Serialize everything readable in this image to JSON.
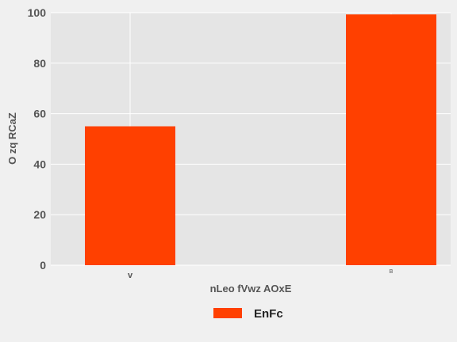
{
  "chart_data": {
    "type": "bar",
    "categories": [
      "v",
      "B"
    ],
    "series": [
      {
        "name": "EnFc",
        "values": [
          55,
          99.3
        ]
      }
    ],
    "xlabel": "nLeo fVwz AOxE",
    "ylabel": "O zq RCaZ",
    "ylim": [
      0,
      100
    ],
    "yticks": [
      0,
      20,
      40,
      60,
      80,
      100
    ],
    "grid": true,
    "legend_position": "bottom-center"
  },
  "colors": {
    "bar": "#ff4000",
    "plot_background": "#e5e5e5",
    "figure_background": "#f0f0f0",
    "grid": "#ffffff"
  }
}
